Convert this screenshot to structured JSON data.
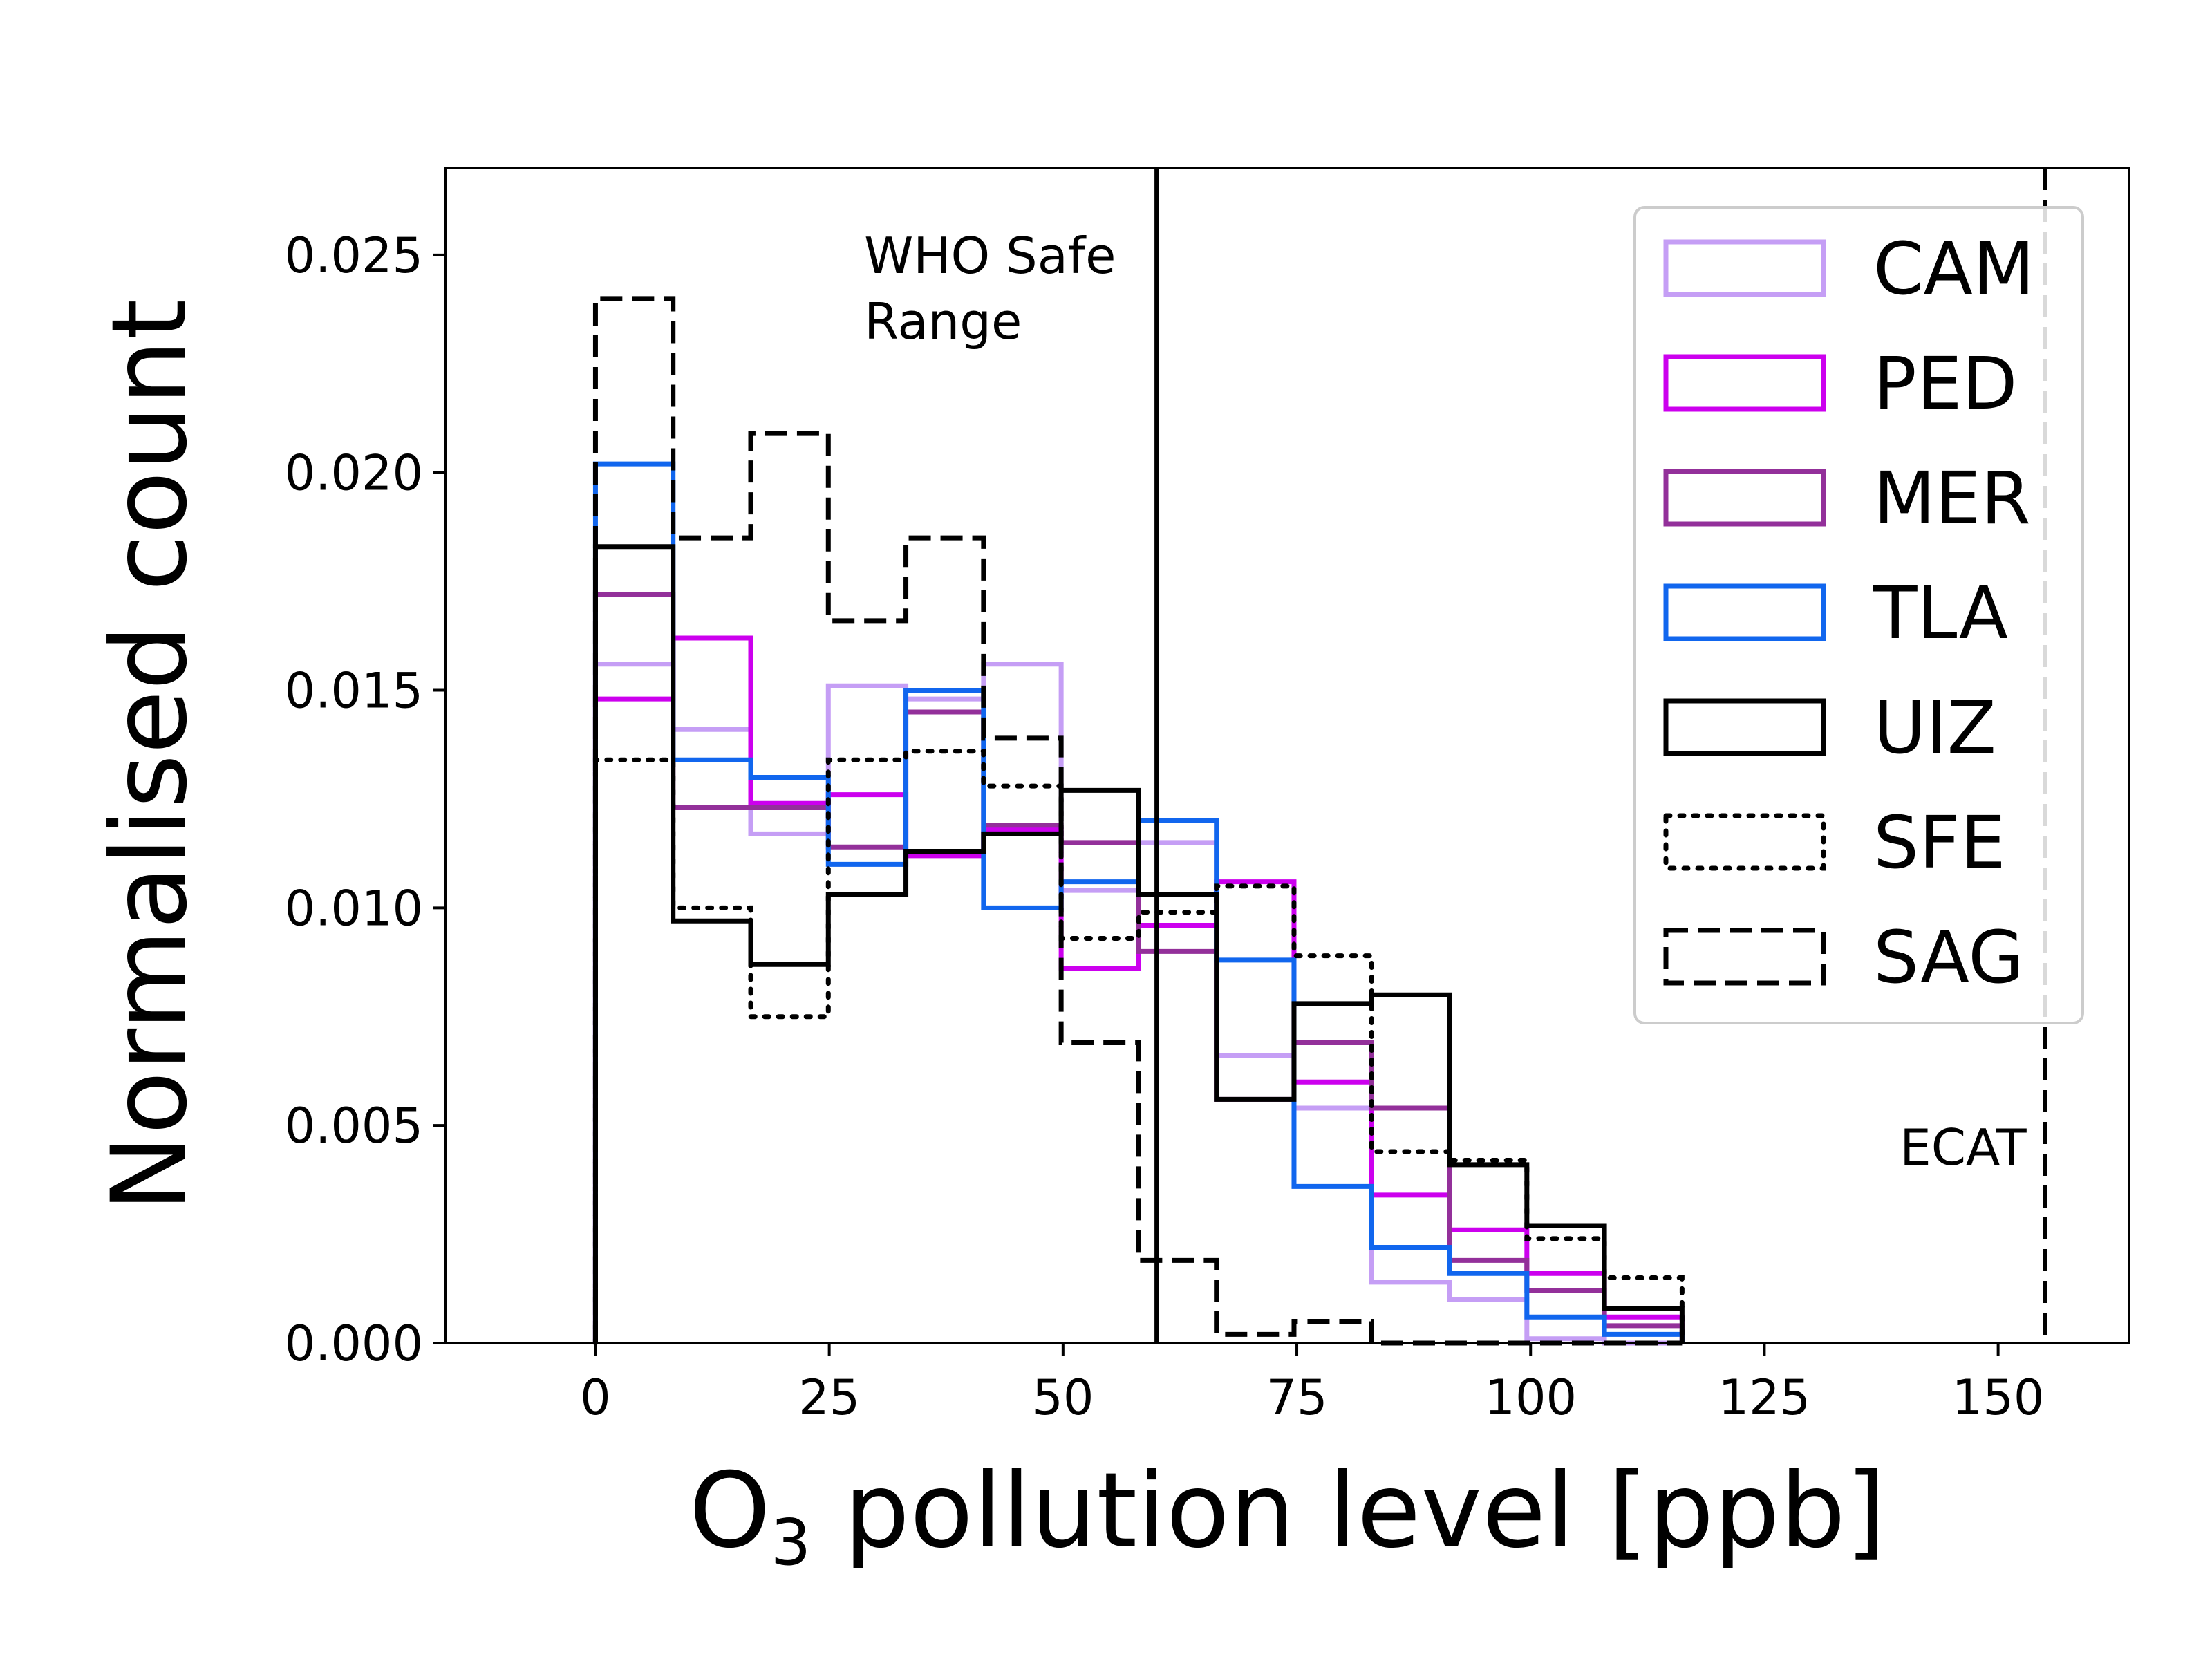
{
  "chart_data": {
    "type": "histogram",
    "xlabel_main": "O",
    "xlabel_sub": "3",
    "xlabel_rest": " pollution level [ppb]",
    "ylabel": "Normalised count",
    "xlim": [
      -16,
      164
    ],
    "ylim": [
      0,
      0.027
    ],
    "xticks": [
      0,
      25,
      50,
      75,
      100,
      125,
      150
    ],
    "xtick_labels": [
      "0",
      "25",
      "50",
      "75",
      "100",
      "125",
      "150"
    ],
    "yticks": [
      0,
      0.005,
      0.01,
      0.015,
      0.02,
      0.025
    ],
    "ytick_labels": [
      "0.000",
      "0.005",
      "0.010",
      "0.015",
      "0.020",
      "0.025"
    ],
    "grid": false,
    "legend_position": "top-right",
    "bin_edges": [
      0,
      8.3,
      16.6,
      24.9,
      33.2,
      41.5,
      49.8,
      58.1,
      66.4,
      74.7,
      83.0,
      91.3,
      99.6,
      107.9,
      116.2
    ],
    "series": [
      {
        "name": "CAM",
        "color": "#c59ef5",
        "style": "solid",
        "values": [
          0.0156,
          0.0141,
          0.0117,
          0.0151,
          0.0148,
          0.0156,
          0.0104,
          0.0115,
          0.0066,
          0.0054,
          0.0014,
          0.001,
          0.0001,
          0.0,
          0.0
        ]
      },
      {
        "name": "PED",
        "color": "#cc00ee",
        "style": "solid",
        "values": [
          0.0148,
          0.0162,
          0.0124,
          0.0126,
          0.0112,
          0.0118,
          0.0086,
          0.0096,
          0.0106,
          0.006,
          0.0034,
          0.0026,
          0.0016,
          0.0006,
          0.0
        ]
      },
      {
        "name": "MER",
        "color": "#93309a",
        "style": "solid",
        "values": [
          0.0172,
          0.0123,
          0.0123,
          0.0114,
          0.0145,
          0.0119,
          0.0115,
          0.009,
          0.0056,
          0.0069,
          0.0054,
          0.0019,
          0.0012,
          0.0004,
          0.0
        ]
      },
      {
        "name": "TLA",
        "color": "#1166ee",
        "style": "solid",
        "values": [
          0.0202,
          0.0134,
          0.013,
          0.011,
          0.015,
          0.01,
          0.0106,
          0.012,
          0.0088,
          0.0036,
          0.0022,
          0.0016,
          0.0006,
          0.0002,
          0.0
        ]
      },
      {
        "name": "UIZ",
        "color": "#000000",
        "style": "solid",
        "values": [
          0.0183,
          0.0097,
          0.0087,
          0.0103,
          0.0113,
          0.0117,
          0.0127,
          0.0103,
          0.0056,
          0.0078,
          0.008,
          0.0041,
          0.0027,
          0.0008,
          0.0
        ]
      },
      {
        "name": "SFE",
        "color": "#000000",
        "style": "dotted",
        "values": [
          0.0134,
          0.01,
          0.0075,
          0.0134,
          0.0136,
          0.0128,
          0.0093,
          0.0099,
          0.0105,
          0.0089,
          0.0044,
          0.0042,
          0.0024,
          0.0015,
          0.0
        ]
      },
      {
        "name": "SAG",
        "color": "#000000",
        "style": "dashed",
        "values": [
          0.024,
          0.0185,
          0.0209,
          0.0166,
          0.0185,
          0.0139,
          0.0069,
          0.0019,
          0.0002,
          0.0005,
          0.0,
          0.0,
          0.0,
          0.0,
          0.0
        ]
      }
    ],
    "vlines": [
      {
        "x": 60,
        "style": "solid",
        "label": "WHO Safe Range"
      },
      {
        "x": 155,
        "style": "dashed",
        "label": "ECAT"
      }
    ],
    "annotations": {
      "who_line1": "WHO Safe",
      "who_line2": "Range",
      "ecat": "ECAT"
    }
  }
}
